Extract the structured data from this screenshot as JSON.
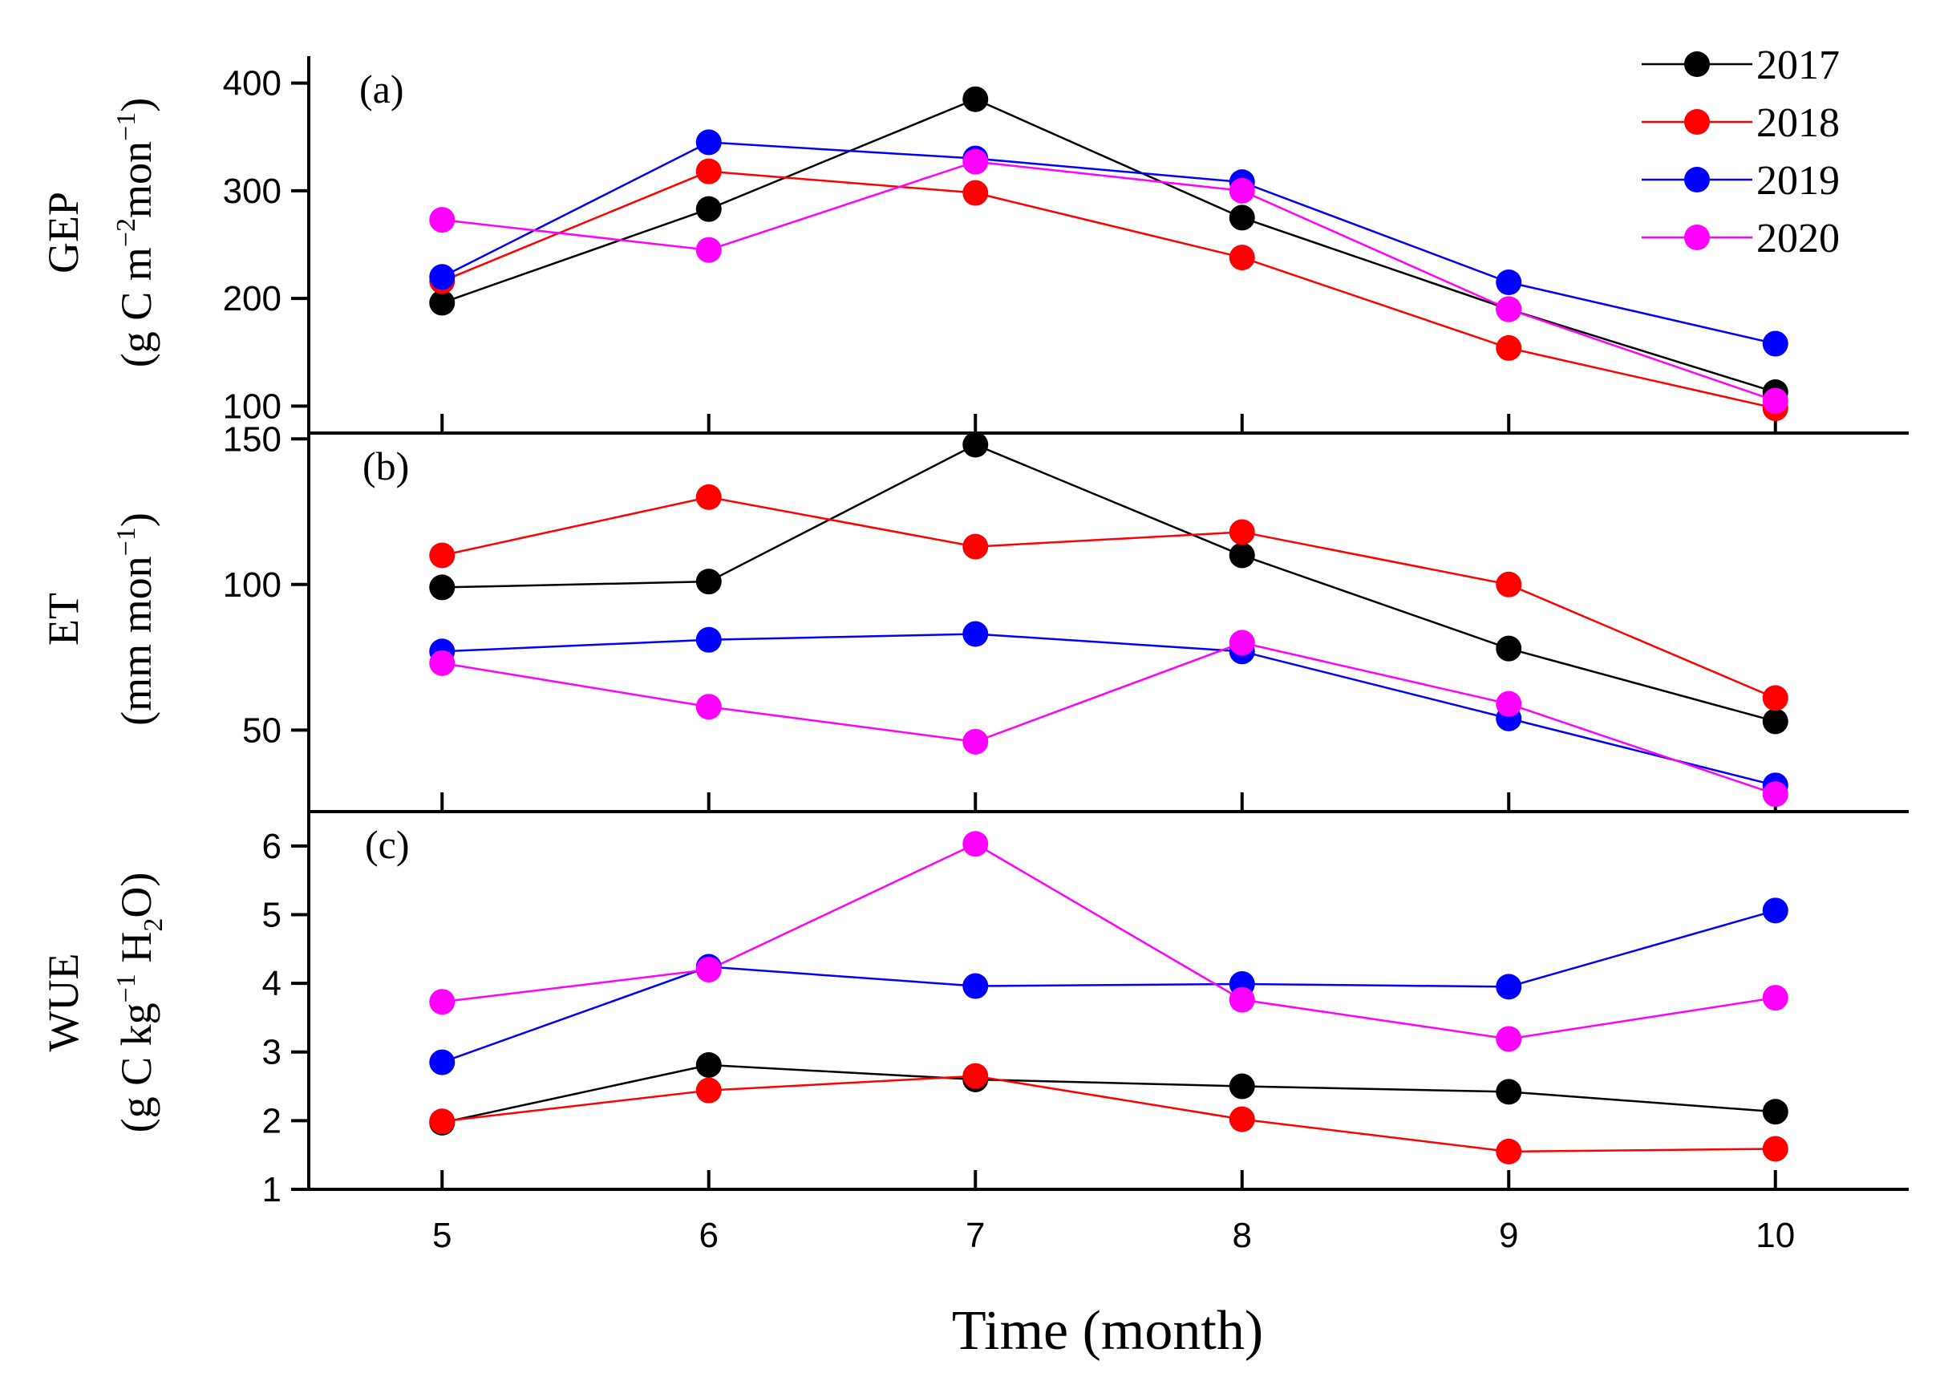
{
  "chart_data": [
    {
      "type": "line",
      "panel": "(a)",
      "ylabel": "GEP",
      "yunit": "(g C m^-2 mon^-1)",
      "ylim": [
        75,
        425
      ],
      "yticks": [
        100,
        200,
        300,
        400
      ],
      "x": [
        5,
        6,
        7,
        8,
        9,
        10
      ],
      "series": [
        {
          "name": "2017",
          "color": "#000000",
          "values": [
            196,
            283,
            385,
            275,
            190,
            113
          ]
        },
        {
          "name": "2018",
          "color": "#ff0000",
          "values": [
            216,
            318,
            298,
            238,
            154,
            98
          ]
        },
        {
          "name": "2019",
          "color": "#0000ff",
          "values": [
            220,
            345,
            330,
            308,
            215,
            158
          ]
        },
        {
          "name": "2020",
          "color": "#ff00ff",
          "values": [
            273,
            245,
            327,
            300,
            190,
            105
          ]
        }
      ]
    },
    {
      "type": "line",
      "panel": "(b)",
      "ylabel": "ET",
      "yunit": "(mm mon^-1)",
      "ylim": [
        22,
        152
      ],
      "yticks": [
        50,
        100,
        150
      ],
      "x": [
        5,
        6,
        7,
        8,
        9,
        10
      ],
      "series": [
        {
          "name": "2017",
          "color": "#000000",
          "values": [
            99,
            101,
            148,
            110,
            78,
            53
          ]
        },
        {
          "name": "2018",
          "color": "#ff0000",
          "values": [
            110,
            130,
            113,
            118,
            100,
            61
          ]
        },
        {
          "name": "2019",
          "color": "#0000ff",
          "values": [
            77,
            81,
            83,
            77,
            54,
            31
          ]
        },
        {
          "name": "2020",
          "color": "#ff00ff",
          "values": [
            73,
            58,
            46,
            80,
            59,
            28
          ]
        }
      ]
    },
    {
      "type": "line",
      "panel": "(c)",
      "ylabel": "WUE",
      "yunit": "(g C kg^-1 H2O)",
      "ylim": [
        1,
        6.5
      ],
      "yticks": [
        1,
        2,
        3,
        4,
        5,
        6
      ],
      "x": [
        5,
        6,
        7,
        8,
        9,
        10
      ],
      "series": [
        {
          "name": "2017",
          "color": "#000000",
          "values": [
            1.97,
            2.81,
            2.6,
            2.5,
            2.42,
            2.13
          ]
        },
        {
          "name": "2018",
          "color": "#ff0000",
          "values": [
            1.99,
            2.44,
            2.65,
            2.02,
            1.55,
            1.59
          ]
        },
        {
          "name": "2019",
          "color": "#0000ff",
          "values": [
            2.85,
            4.24,
            3.96,
            3.99,
            3.95,
            5.06
          ]
        },
        {
          "name": "2020",
          "color": "#ff00ff",
          "values": [
            3.73,
            4.2,
            6.03,
            3.76,
            3.19,
            3.79
          ]
        }
      ]
    }
  ],
  "xaxis": {
    "label": "Time (month)",
    "ticks": [
      5,
      6,
      7,
      8,
      9,
      10
    ],
    "xlim": [
      4.5,
      10.5
    ]
  },
  "legend": {
    "placement": "top-right",
    "items": [
      "2017",
      "2018",
      "2019",
      "2020"
    ]
  },
  "labels": {
    "gep_main": "GEP",
    "gep_unit_open": "(g C m",
    "gep_unit_sup1": "−2",
    "gep_unit_mid": "mon",
    "gep_unit_sup2": "−1",
    "gep_unit_close": ")",
    "et_main": "ET",
    "et_unit_open": "(mm mon",
    "et_unit_sup": "−1",
    "et_unit_close": ")",
    "wue_main": "WUE",
    "wue_unit_open": "(g C kg",
    "wue_unit_sup": "−1",
    "wue_unit_mid": " H",
    "wue_unit_sub": "2",
    "wue_unit_close": "O)"
  }
}
